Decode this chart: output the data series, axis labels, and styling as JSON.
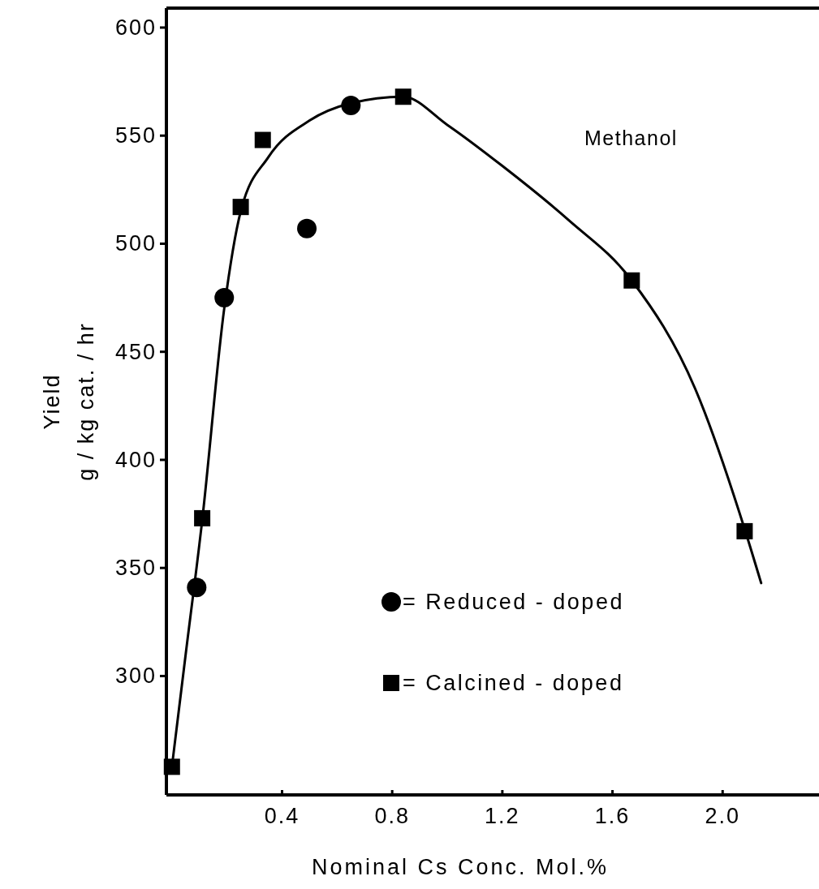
{
  "chart_data": {
    "type": "scatter",
    "xlabel": "Nominal Cs Conc. Mol.%",
    "ylabel": "Yield\ng / kg cat. / hr",
    "xlim": [
      -0.02,
      2.35
    ],
    "xticks": [
      0.4,
      0.8,
      1.2,
      1.6,
      {
        "value": 2,
        "label": "2.0"
      }
    ],
    "ylim": [
      245,
      609
    ],
    "yticks": [
      300,
      350,
      400,
      450,
      500,
      550,
      600
    ],
    "grid": false,
    "legend": "bottom right",
    "annotations": [
      "Methanol"
    ],
    "series": [
      {
        "type": "line",
        "color": "#000000",
        "marker": "none",
        "line_style": "solid",
        "x": [
          0.0,
          0.05,
          0.11,
          0.19,
          0.25,
          0.35,
          0.5,
          0.65,
          0.84,
          1.0,
          1.2,
          1.44,
          1.67,
          1.9,
          2.08,
          2.14
        ],
        "values": [
          258,
          310,
          372,
          470,
          515,
          540,
          557,
          565,
          568,
          555,
          536,
          511,
          483,
          433,
          368,
          343
        ]
      },
      {
        "name": "= Reduced - doped",
        "color": "#000000",
        "marker": "circle",
        "x": [
          0.09,
          0.19,
          0.49,
          0.65
        ],
        "values": [
          341,
          475,
          507,
          564
        ]
      },
      {
        "name": "= Calcined - doped",
        "color": "#000000",
        "marker": "square",
        "x": [
          0.0,
          0.11,
          0.25,
          0.33,
          0.84,
          1.67,
          2.08
        ],
        "values": [
          258,
          373,
          517,
          548,
          568,
          483,
          367
        ]
      }
    ]
  }
}
